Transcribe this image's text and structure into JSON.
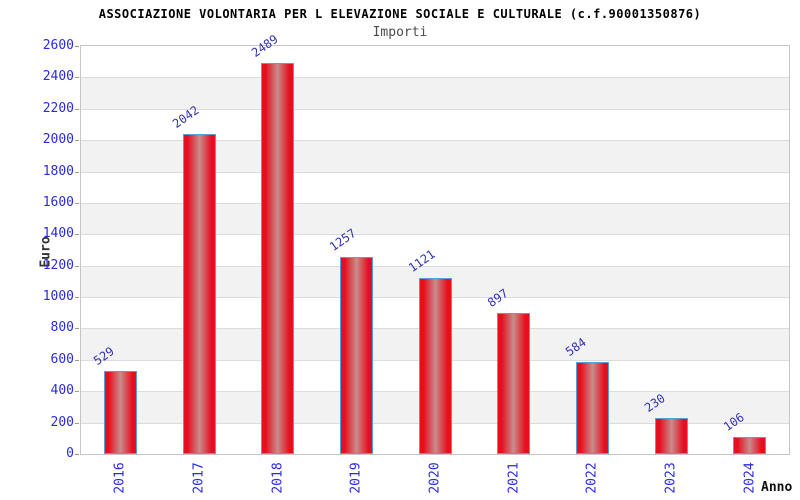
{
  "header": {
    "title": "ASSOCIAZIONE VOLONTARIA PER L ELEVAZIONE SOCIALE E CULTURALE (c.f.90001350876)",
    "subtitle": "Importi"
  },
  "chart_data": {
    "type": "bar",
    "title": "ASSOCIAZIONE VOLONTARIA PER L ELEVAZIONE SOCIALE E CULTURALE (c.f.90001350876)",
    "subtitle": "Importi",
    "categories": [
      "2016",
      "2017",
      "2018",
      "2019",
      "2020",
      "2021",
      "2022",
      "2023",
      "2024"
    ],
    "values": [
      529,
      2042,
      2489,
      1257,
      1121,
      897,
      584,
      230,
      106
    ],
    "xlabel": "Anno",
    "ylabel": "Euro",
    "ylim": [
      0,
      2600
    ],
    "ytick_step": 200,
    "grid": "horizontal-bands",
    "legend_position": "none",
    "colors": {
      "bar_edge": "#e60f1f",
      "bar_center": "#c98c8c",
      "bar_border": "#55a0dc",
      "tick_label": "#2a2ae0",
      "value_label": "#3434b0",
      "band_gray": "#f2f2f2",
      "gridline": "#dcdcdc",
      "plot_border": "#c6c6c6",
      "title": "#000000",
      "subtitle": "#4d4d4d"
    }
  }
}
